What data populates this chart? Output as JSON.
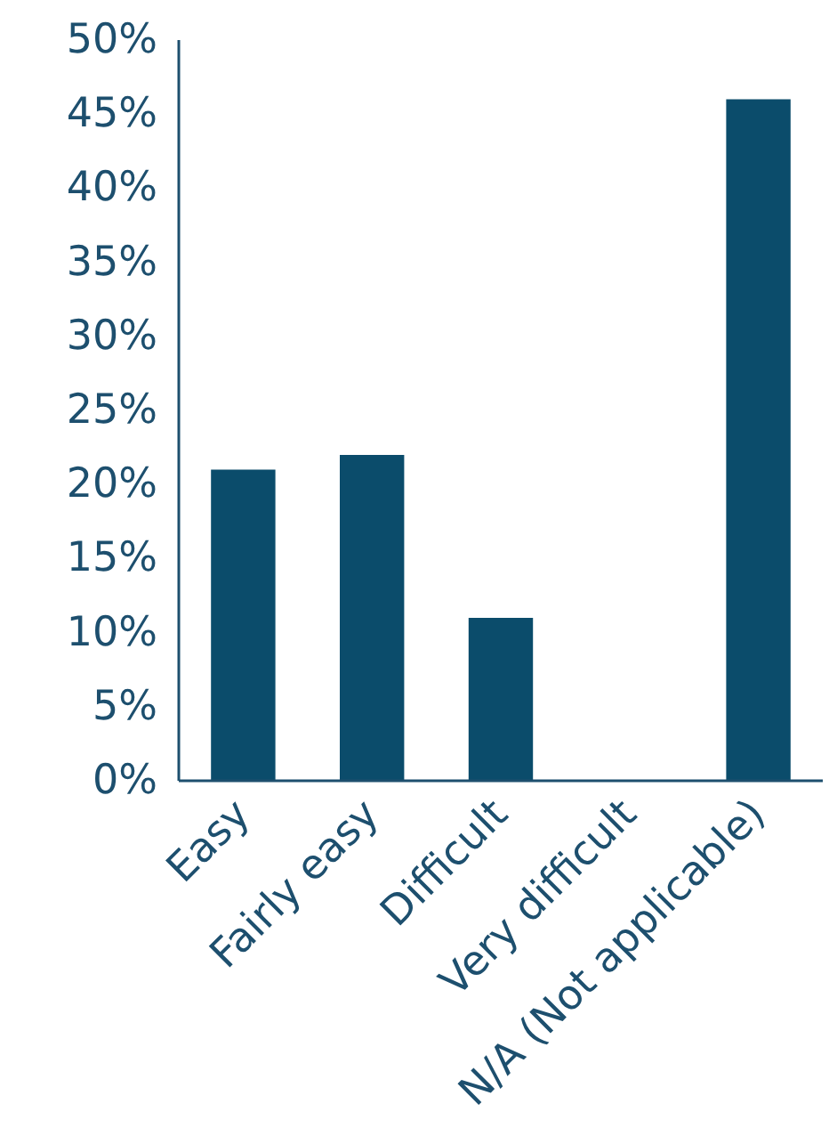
{
  "chart_data": {
    "type": "bar",
    "categories": [
      "Easy",
      "Fairly easy",
      "Difficult",
      "Very difficult",
      "N/A (Not applicable)"
    ],
    "values": [
      21,
      22,
      11,
      0,
      46
    ],
    "color": "#0b4c6b",
    "ylim": [
      0,
      50
    ],
    "yticks": [
      {
        "value": 0,
        "label": "0%"
      },
      {
        "value": 5,
        "label": "5%"
      },
      {
        "value": 10,
        "label": "10%"
      },
      {
        "value": 15,
        "label": "15%"
      },
      {
        "value": 20,
        "label": "20%"
      },
      {
        "value": 25,
        "label": "25%"
      },
      {
        "value": 30,
        "label": "30%"
      },
      {
        "value": 35,
        "label": "35%"
      },
      {
        "value": 40,
        "label": "40%"
      },
      {
        "value": 45,
        "label": "45%"
      },
      {
        "value": 50,
        "label": "50%"
      }
    ],
    "grid": false
  }
}
